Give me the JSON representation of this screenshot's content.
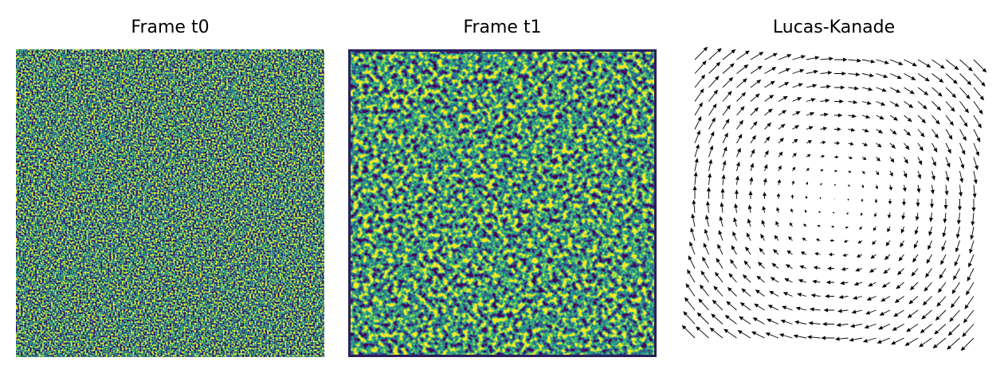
{
  "chart_data": [
    {
      "type": "image",
      "title": "Frame t0",
      "noise": "fine"
    },
    {
      "type": "image",
      "title": "Frame t1",
      "noise": "smooth"
    },
    {
      "type": "quiver",
      "title": "Lucas-Kanade",
      "u": [
        [
          10,
          10,
          10,
          10,
          10,
          10,
          10,
          10,
          10,
          10,
          10,
          10,
          10,
          10,
          10,
          10,
          10,
          10,
          10,
          10,
          10
        ],
        [
          9,
          9,
          9,
          9,
          9,
          9,
          9,
          9,
          9,
          9,
          9,
          9,
          9,
          9,
          9,
          9,
          9,
          9,
          9,
          9,
          9
        ],
        [
          8,
          8,
          8,
          8,
          8,
          8,
          8,
          8,
          8,
          8,
          8,
          8,
          8,
          8,
          8,
          8,
          8,
          8,
          8,
          8,
          8
        ],
        [
          7,
          7,
          7,
          7,
          7,
          7,
          7,
          7,
          7,
          7,
          7,
          7,
          7,
          7,
          7,
          7,
          7,
          7,
          7,
          7,
          7
        ],
        [
          6,
          6,
          6,
          6,
          6,
          6,
          6,
          6,
          6,
          6,
          6,
          6,
          6,
          6,
          6,
          6,
          6,
          6,
          6,
          6,
          6
        ],
        [
          5,
          5,
          5,
          5,
          5,
          5,
          5,
          5,
          5,
          5,
          5,
          5,
          5,
          5,
          5,
          5,
          5,
          5,
          5,
          5,
          5
        ],
        [
          4,
          4,
          4,
          4,
          4,
          4,
          4,
          4,
          4,
          4,
          4,
          4,
          4,
          4,
          4,
          4,
          4,
          4,
          4,
          4,
          4
        ],
        [
          3,
          3,
          3,
          3,
          3,
          3,
          3,
          3,
          3,
          3,
          3,
          3,
          3,
          3,
          3,
          3,
          3,
          3,
          3,
          3,
          3
        ],
        [
          2,
          2,
          2,
          2,
          2,
          2,
          2,
          2,
          2,
          2,
          2,
          2,
          2,
          2,
          2,
          2,
          2,
          2,
          2,
          2,
          2
        ],
        [
          1,
          1,
          1,
          1,
          1,
          1,
          1,
          1,
          1,
          1,
          1,
          1,
          1,
          1,
          1,
          1,
          1,
          1,
          1,
          1,
          1
        ],
        [
          0,
          0,
          0,
          0,
          0,
          0,
          0,
          0,
          0,
          0,
          0,
          0,
          0,
          0,
          0,
          0,
          0,
          0,
          0,
          0,
          0
        ],
        [
          -1,
          -1,
          -1,
          -1,
          -1,
          -1,
          -1,
          -1,
          -1,
          -1,
          -1,
          -1,
          -1,
          -1,
          -1,
          -1,
          -1,
          -1,
          -1,
          -1,
          -1
        ],
        [
          -2,
          -2,
          -2,
          -2,
          -2,
          -2,
          -2,
          -2,
          -2,
          -2,
          -2,
          -2,
          -2,
          -2,
          -2,
          -2,
          -2,
          -2,
          -2,
          -2,
          -2
        ],
        [
          -3,
          -3,
          -3,
          -3,
          -3,
          -3,
          -3,
          -3,
          -3,
          -3,
          -3,
          -3,
          -3,
          -3,
          -3,
          -3,
          -3,
          -3,
          -3,
          -3,
          -3
        ],
        [
          -4,
          -4,
          -4,
          -4,
          -4,
          -4,
          -4,
          -4,
          -4,
          -4,
          -4,
          -4,
          -4,
          -4,
          -4,
          -4,
          -4,
          -4,
          -4,
          -4,
          -4
        ],
        [
          -5,
          -5,
          -5,
          -5,
          -5,
          -5,
          -5,
          -5,
          -5,
          -5,
          -5,
          -5,
          -5,
          -5,
          -5,
          -5,
          -5,
          -5,
          -5,
          -5,
          -5
        ],
        [
          -6,
          -6,
          -6,
          -6,
          -6,
          -6,
          -6,
          -6,
          -6,
          -6,
          -6,
          -6,
          -6,
          -6,
          -6,
          -6,
          -6,
          -6,
          -6,
          -6,
          -6
        ],
        [
          -7,
          -7,
          -7,
          -7,
          -7,
          -7,
          -7,
          -7,
          -7,
          -7,
          -7,
          -7,
          -7,
          -7,
          -7,
          -7,
          -7,
          -7,
          -7,
          -7,
          -7
        ],
        [
          -8,
          -8,
          -8,
          -8,
          -8,
          -8,
          -8,
          -8,
          -8,
          -8,
          -8,
          -8,
          -8,
          -8,
          -8,
          -8,
          -8,
          -8,
          -8,
          -8,
          -8
        ],
        [
          -9,
          -9,
          -9,
          -9,
          -9,
          -9,
          -9,
          -9,
          -9,
          -9,
          -9,
          -9,
          -9,
          -9,
          -9,
          -9,
          -9,
          -9,
          -9,
          -9,
          -9
        ],
        [
          -10,
          -10,
          -10,
          -10,
          -10,
          -10,
          -10,
          -10,
          -10,
          -10,
          -10,
          -10,
          -10,
          -10,
          -10,
          -10,
          -10,
          -10,
          -10,
          -10,
          -10
        ]
      ],
      "v": [
        [
          -10,
          -9,
          -8,
          -7,
          -6,
          -5,
          -4,
          -3,
          -2,
          -1,
          0,
          1,
          2,
          3,
          4,
          5,
          6,
          7,
          8,
          9,
          10
        ],
        [
          -10,
          -9,
          -8,
          -7,
          -6,
          -5,
          -4,
          -3,
          -2,
          -1,
          0,
          1,
          2,
          3,
          4,
          5,
          6,
          7,
          8,
          9,
          10
        ],
        [
          -10,
          -9,
          -8,
          -7,
          -6,
          -5,
          -4,
          -3,
          -2,
          -1,
          0,
          1,
          2,
          3,
          4,
          5,
          6,
          7,
          8,
          9,
          10
        ],
        [
          -10,
          -9,
          -8,
          -7,
          -6,
          -5,
          -4,
          -3,
          -2,
          -1,
          0,
          1,
          2,
          3,
          4,
          5,
          6,
          7,
          8,
          9,
          10
        ],
        [
          -10,
          -9,
          -8,
          -7,
          -6,
          -5,
          -4,
          -3,
          -2,
          -1,
          0,
          1,
          2,
          3,
          4,
          5,
          6,
          7,
          8,
          9,
          10
        ],
        [
          -10,
          -9,
          -8,
          -7,
          -6,
          -5,
          -4,
          -3,
          -2,
          -1,
          0,
          1,
          2,
          3,
          4,
          5,
          6,
          7,
          8,
          9,
          10
        ],
        [
          -10,
          -9,
          -8,
          -7,
          -6,
          -5,
          -4,
          -3,
          -2,
          -1,
          0,
          1,
          2,
          3,
          4,
          5,
          6,
          7,
          8,
          9,
          10
        ],
        [
          -10,
          -9,
          -8,
          -7,
          -6,
          -5,
          -4,
          -3,
          -2,
          -1,
          0,
          1,
          2,
          3,
          4,
          5,
          6,
          7,
          8,
          9,
          10
        ],
        [
          -10,
          -9,
          -8,
          -7,
          -6,
          -5,
          -4,
          -3,
          -2,
          -1,
          0,
          1,
          2,
          3,
          4,
          5,
          6,
          7,
          8,
          9,
          10
        ],
        [
          -10,
          -9,
          -8,
          -7,
          -6,
          -5,
          -4,
          -3,
          -2,
          -1,
          0,
          1,
          2,
          3,
          4,
          5,
          6,
          7,
          8,
          9,
          10
        ],
        [
          -10,
          -9,
          -8,
          -7,
          -6,
          -5,
          -4,
          -3,
          -2,
          -1,
          0,
          1,
          2,
          3,
          4,
          5,
          6,
          7,
          8,
          9,
          10
        ],
        [
          -10,
          -9,
          -8,
          -7,
          -6,
          -5,
          -4,
          -3,
          -2,
          -1,
          0,
          1,
          2,
          3,
          4,
          5,
          6,
          7,
          8,
          9,
          10
        ],
        [
          -10,
          -9,
          -8,
          -7,
          -6,
          -5,
          -4,
          -3,
          -2,
          -1,
          0,
          1,
          2,
          3,
          4,
          5,
          6,
          7,
          8,
          9,
          10
        ],
        [
          -10,
          -9,
          -8,
          -7,
          -6,
          -5,
          -4,
          -3,
          -2,
          -1,
          0,
          1,
          2,
          3,
          4,
          5,
          6,
          7,
          8,
          9,
          10
        ],
        [
          -10,
          -9,
          -8,
          -7,
          -6,
          -5,
          -4,
          -3,
          -2,
          -1,
          0,
          1,
          2,
          3,
          4,
          5,
          6,
          7,
          8,
          9,
          10
        ],
        [
          -10,
          -9,
          -8,
          -7,
          -6,
          -5,
          -4,
          -3,
          -2,
          -1,
          0,
          1,
          2,
          3,
          4,
          5,
          6,
          7,
          8,
          9,
          10
        ],
        [
          -10,
          -9,
          -8,
          -7,
          -6,
          -5,
          -4,
          -3,
          -2,
          -1,
          0,
          1,
          2,
          3,
          4,
          5,
          6,
          7,
          8,
          9,
          10
        ],
        [
          -10,
          -9,
          -8,
          -7,
          -6,
          -5,
          -4,
          -3,
          -2,
          -1,
          0,
          1,
          2,
          3,
          4,
          5,
          6,
          7,
          8,
          9,
          10
        ],
        [
          -10,
          -9,
          -8,
          -7,
          -6,
          -5,
          -4,
          -3,
          -2,
          -1,
          0,
          1,
          2,
          3,
          4,
          5,
          6,
          7,
          8,
          9,
          10
        ],
        [
          -10,
          -9,
          -8,
          -7,
          -6,
          -5,
          -4,
          -3,
          -2,
          -1,
          0,
          1,
          2,
          3,
          4,
          5,
          6,
          7,
          8,
          9,
          10
        ],
        [
          -10,
          -9,
          -8,
          -7,
          -6,
          -5,
          -4,
          -3,
          -2,
          -1,
          0,
          1,
          2,
          3,
          4,
          5,
          6,
          7,
          8,
          9,
          10
        ]
      ]
    }
  ]
}
